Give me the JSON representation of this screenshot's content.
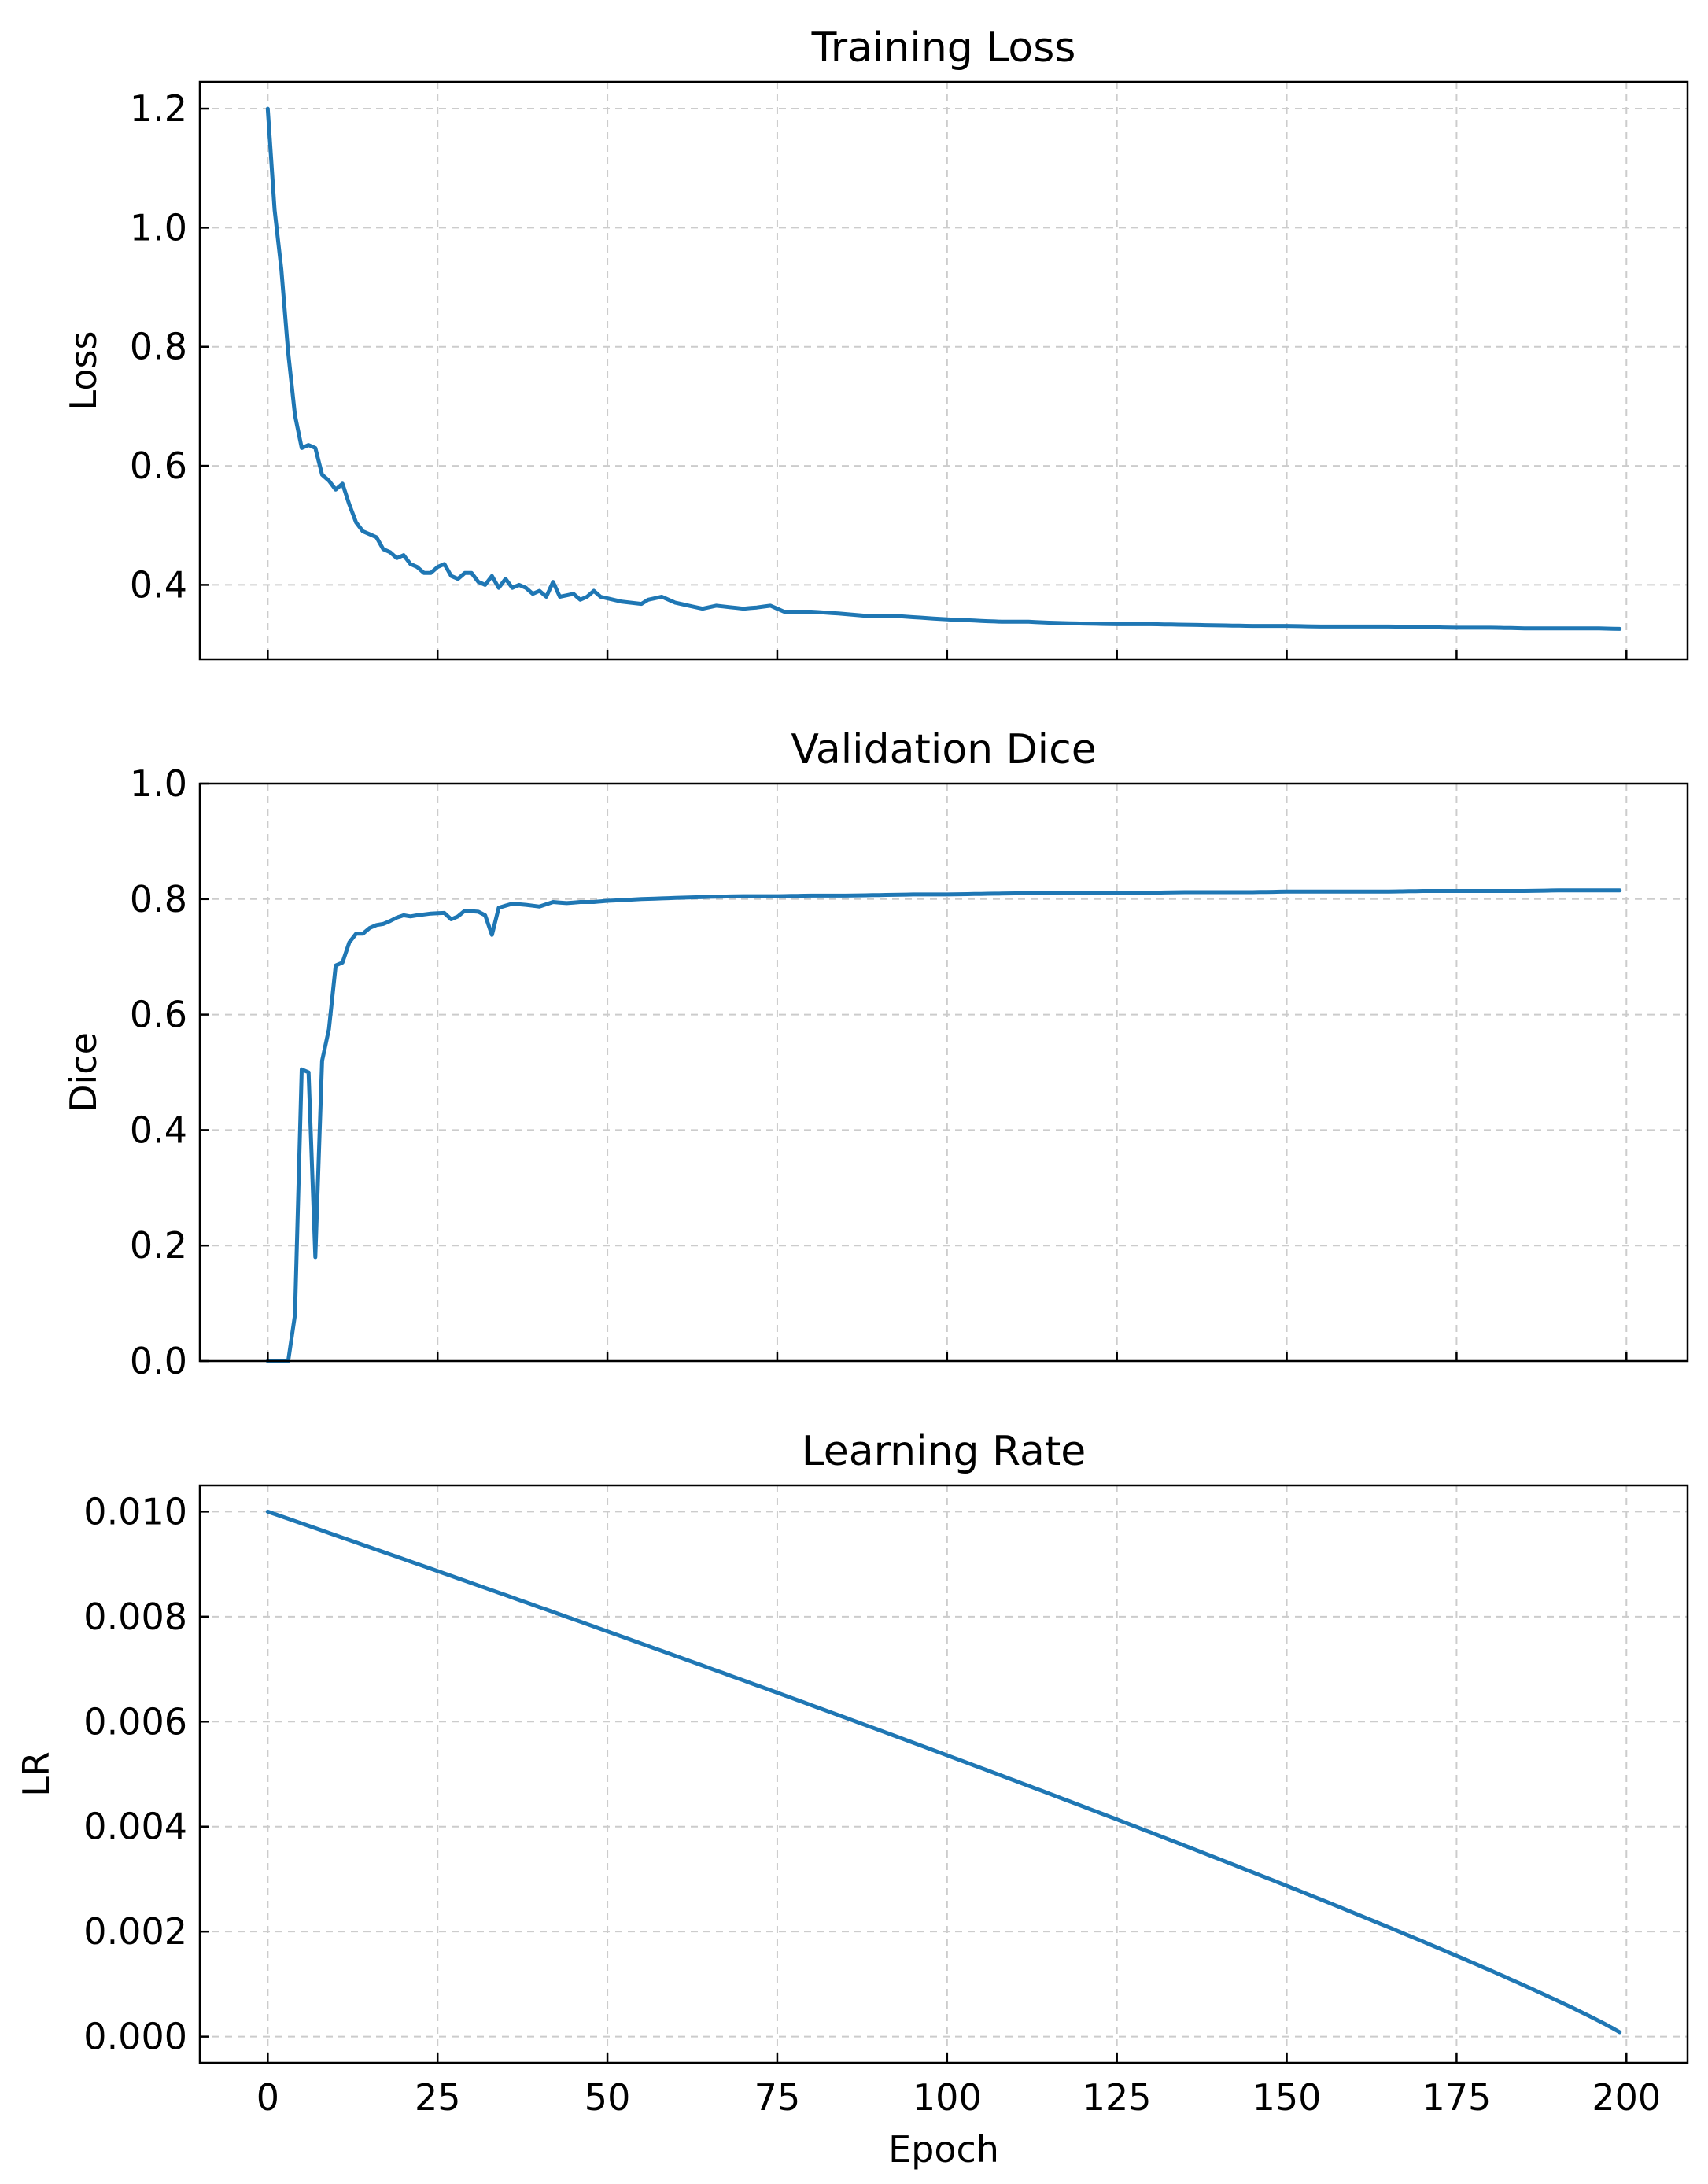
{
  "chart_data": [
    {
      "type": "line",
      "title": "Training Loss",
      "xlabel": "",
      "ylabel": "Loss",
      "xlim": [
        -10,
        209
      ],
      "ylim": [
        0.275,
        1.245
      ],
      "yticks": [
        0.4,
        0.6,
        0.8,
        1.0,
        1.2
      ],
      "ytick_labels": [
        "0.4",
        "0.6",
        "0.8",
        "1.0",
        "1.2"
      ],
      "xticks": [
        0,
        25,
        50,
        75,
        100,
        125,
        150,
        175,
        200
      ],
      "xtick_labels": [],
      "grid": true,
      "color": "#1f77b4",
      "series": [
        {
          "anchors": [
            [
              0,
              1.2
            ],
            [
              1,
              1.03
            ],
            [
              2,
              0.93
            ],
            [
              3,
              0.79
            ],
            [
              4,
              0.685
            ],
            [
              5,
              0.63
            ],
            [
              6,
              0.635
            ],
            [
              7,
              0.63
            ],
            [
              8,
              0.585
            ],
            [
              9,
              0.575
            ],
            [
              10,
              0.56
            ],
            [
              11,
              0.57
            ],
            [
              12,
              0.535
            ],
            [
              13,
              0.505
            ],
            [
              14,
              0.49
            ],
            [
              15,
              0.485
            ],
            [
              16,
              0.48
            ],
            [
              17,
              0.46
            ],
            [
              18,
              0.455
            ],
            [
              19,
              0.445
            ],
            [
              20,
              0.45
            ],
            [
              21,
              0.435
            ],
            [
              22,
              0.43
            ],
            [
              23,
              0.42
            ],
            [
              24,
              0.42
            ],
            [
              25,
              0.43
            ],
            [
              26,
              0.435
            ],
            [
              27,
              0.415
            ],
            [
              28,
              0.41
            ],
            [
              29,
              0.42
            ],
            [
              30,
              0.42
            ],
            [
              31,
              0.405
            ],
            [
              32,
              0.4
            ],
            [
              33,
              0.415
            ],
            [
              34,
              0.395
            ],
            [
              35,
              0.41
            ],
            [
              36,
              0.395
            ],
            [
              37,
              0.4
            ],
            [
              38,
              0.395
            ],
            [
              39,
              0.385
            ],
            [
              40,
              0.39
            ],
            [
              41,
              0.38
            ],
            [
              42,
              0.405
            ],
            [
              43,
              0.38
            ],
            [
              45,
              0.385
            ],
            [
              46,
              0.375
            ],
            [
              47,
              0.38
            ],
            [
              48,
              0.39
            ],
            [
              49,
              0.38
            ],
            [
              52,
              0.372
            ],
            [
              55,
              0.368
            ],
            [
              56,
              0.375
            ],
            [
              58,
              0.38
            ],
            [
              60,
              0.37
            ],
            [
              62,
              0.365
            ],
            [
              64,
              0.36
            ],
            [
              66,
              0.365
            ],
            [
              70,
              0.36
            ],
            [
              72,
              0.362
            ],
            [
              74,
              0.365
            ],
            [
              76,
              0.355
            ],
            [
              80,
              0.355
            ],
            [
              84,
              0.352
            ],
            [
              88,
              0.348
            ],
            [
              92,
              0.348
            ],
            [
              96,
              0.345
            ],
            [
              100,
              0.342
            ],
            [
              104,
              0.34
            ],
            [
              108,
              0.338
            ],
            [
              112,
              0.338
            ],
            [
              116,
              0.336
            ],
            [
              120,
              0.335
            ],
            [
              125,
              0.334
            ],
            [
              130,
              0.334
            ],
            [
              135,
              0.333
            ],
            [
              140,
              0.332
            ],
            [
              145,
              0.331
            ],
            [
              150,
              0.331
            ],
            [
              155,
              0.33
            ],
            [
              160,
              0.33
            ],
            [
              165,
              0.33
            ],
            [
              170,
              0.329
            ],
            [
              175,
              0.328
            ],
            [
              180,
              0.328
            ],
            [
              185,
              0.327
            ],
            [
              190,
              0.327
            ],
            [
              195,
              0.327
            ],
            [
              199,
              0.326
            ]
          ]
        }
      ]
    },
    {
      "type": "line",
      "title": "Validation Dice",
      "xlabel": "",
      "ylabel": "Dice",
      "xlim": [
        -10,
        209
      ],
      "ylim": [
        0.0,
        1.0
      ],
      "yticks": [
        0.0,
        0.2,
        0.4,
        0.6,
        0.8,
        1.0
      ],
      "ytick_labels": [
        "0.0",
        "0.2",
        "0.4",
        "0.6",
        "0.8",
        "1.0"
      ],
      "xticks": [
        0,
        25,
        50,
        75,
        100,
        125,
        150,
        175,
        200
      ],
      "xtick_labels": [],
      "grid": true,
      "color": "#1f77b4",
      "series": [
        {
          "anchors": [
            [
              0,
              0.0
            ],
            [
              1,
              0.0
            ],
            [
              2,
              0.0
            ],
            [
              3,
              0.0
            ],
            [
              4,
              0.08
            ],
            [
              5,
              0.505
            ],
            [
              6,
              0.5
            ],
            [
              7,
              0.18
            ],
            [
              8,
              0.52
            ],
            [
              9,
              0.575
            ],
            [
              10,
              0.685
            ],
            [
              11,
              0.69
            ],
            [
              12,
              0.725
            ],
            [
              13,
              0.74
            ],
            [
              14,
              0.74
            ],
            [
              15,
              0.75
            ],
            [
              16,
              0.755
            ],
            [
              17,
              0.757
            ],
            [
              18,
              0.762
            ],
            [
              19,
              0.768
            ],
            [
              20,
              0.772
            ],
            [
              21,
              0.77
            ],
            [
              22,
              0.772
            ],
            [
              24,
              0.775
            ],
            [
              26,
              0.776
            ],
            [
              27,
              0.765
            ],
            [
              28,
              0.77
            ],
            [
              29,
              0.78
            ],
            [
              31,
              0.778
            ],
            [
              32,
              0.772
            ],
            [
              33,
              0.738
            ],
            [
              34,
              0.785
            ],
            [
              36,
              0.792
            ],
            [
              38,
              0.79
            ],
            [
              40,
              0.787
            ],
            [
              42,
              0.795
            ],
            [
              44,
              0.793
            ],
            [
              46,
              0.795
            ],
            [
              48,
              0.795
            ],
            [
              50,
              0.797
            ],
            [
              55,
              0.8
            ],
            [
              60,
              0.802
            ],
            [
              65,
              0.804
            ],
            [
              70,
              0.805
            ],
            [
              75,
              0.805
            ],
            [
              80,
              0.806
            ],
            [
              85,
              0.806
            ],
            [
              90,
              0.807
            ],
            [
              95,
              0.808
            ],
            [
              100,
              0.808
            ],
            [
              105,
              0.809
            ],
            [
              110,
              0.81
            ],
            [
              115,
              0.81
            ],
            [
              120,
              0.811
            ],
            [
              125,
              0.811
            ],
            [
              130,
              0.811
            ],
            [
              135,
              0.812
            ],
            [
              140,
              0.812
            ],
            [
              145,
              0.812
            ],
            [
              150,
              0.813
            ],
            [
              155,
              0.813
            ],
            [
              160,
              0.813
            ],
            [
              165,
              0.813
            ],
            [
              170,
              0.814
            ],
            [
              175,
              0.814
            ],
            [
              180,
              0.814
            ],
            [
              185,
              0.814
            ],
            [
              190,
              0.815
            ],
            [
              195,
              0.815
            ],
            [
              199,
              0.815
            ]
          ]
        }
      ]
    },
    {
      "type": "line",
      "title": "Learning Rate",
      "xlabel": "Epoch",
      "ylabel": "LR",
      "xlim": [
        -10,
        209
      ],
      "ylim": [
        -0.0005,
        0.0105
      ],
      "yticks": [
        0.0,
        0.002,
        0.004,
        0.006,
        0.008,
        0.01
      ],
      "ytick_labels": [
        "0.000",
        "0.002",
        "0.004",
        "0.006",
        "0.008",
        "0.010"
      ],
      "xticks": [
        0,
        25,
        50,
        75,
        100,
        125,
        150,
        175,
        200
      ],
      "xtick_labels": [
        "0",
        "25",
        "50",
        "75",
        "100",
        "125",
        "150",
        "175",
        "200"
      ],
      "grid": true,
      "color": "#1f77b4",
      "series": [
        {
          "formula": "0.01 * (1 - epoch/200)^0.9",
          "x_start": 0,
          "x_end": 199
        }
      ]
    }
  ]
}
